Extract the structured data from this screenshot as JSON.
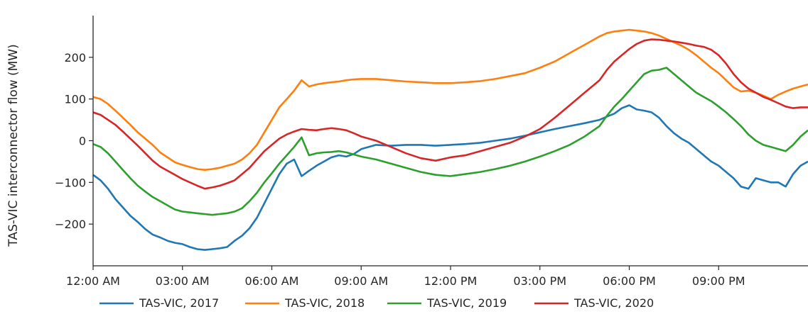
{
  "chart_data": {
    "type": "line",
    "title": "",
    "xlabel": "",
    "ylabel": "TAS-VIC interconnector flow (MW)",
    "x_tick_labels": [
      "12:00 AM",
      "03:00 AM",
      "06:00 AM",
      "09:00 AM",
      "12:00 PM",
      "03:00 PM",
      "06:00 PM",
      "09:00 PM"
    ],
    "x_tick_hours": [
      0,
      3,
      6,
      9,
      12,
      15,
      18,
      21
    ],
    "y_ticks": [
      -200,
      -100,
      0,
      100,
      200
    ],
    "y_tick_labels": [
      "−200",
      "−100",
      "0",
      "100",
      "200"
    ],
    "xlim": [
      0,
      24
    ],
    "ylim": [
      -300,
      300
    ],
    "grid": false,
    "legend_position": "bottom",
    "series": [
      {
        "name": "TAS-VIC, 2017",
        "color": "#1f77b4",
        "x": [
          0,
          0.25,
          0.5,
          0.75,
          1,
          1.25,
          1.5,
          1.75,
          2,
          2.25,
          2.5,
          2.75,
          3,
          3.25,
          3.5,
          3.75,
          4,
          4.25,
          4.5,
          4.75,
          5,
          5.25,
          5.5,
          5.75,
          6,
          6.25,
          6.5,
          6.75,
          7,
          7.25,
          7.5,
          7.75,
          8,
          8.25,
          8.5,
          8.75,
          9,
          9.5,
          10,
          10.5,
          11,
          11.5,
          12,
          12.5,
          13,
          13.5,
          14,
          14.5,
          15,
          15.5,
          16,
          16.5,
          17,
          17.25,
          17.5,
          17.75,
          18,
          18.25,
          18.5,
          18.75,
          19,
          19.25,
          19.5,
          19.75,
          20,
          20.25,
          20.5,
          20.75,
          21,
          21.25,
          21.5,
          21.75,
          22,
          22.25,
          22.5,
          22.75,
          23,
          23.25,
          23.5,
          23.75,
          24
        ],
        "y": [
          -82,
          -95,
          -115,
          -140,
          -160,
          -180,
          -195,
          -212,
          -225,
          -232,
          -240,
          -245,
          -248,
          -255,
          -260,
          -262,
          -260,
          -258,
          -255,
          -240,
          -228,
          -210,
          -185,
          -150,
          -115,
          -80,
          -55,
          -45,
          -85,
          -72,
          -60,
          -50,
          -40,
          -35,
          -38,
          -32,
          -20,
          -10,
          -12,
          -10,
          -10,
          -12,
          -10,
          -8,
          -5,
          0,
          5,
          12,
          20,
          28,
          35,
          42,
          50,
          58,
          65,
          78,
          85,
          75,
          72,
          68,
          55,
          35,
          18,
          5,
          -5,
          -20,
          -35,
          -50,
          -60,
          -75,
          -90,
          -110,
          -115,
          -90,
          -95,
          -100,
          -100,
          -110,
          -80,
          -60,
          -50
        ]
      },
      {
        "name": "TAS-VIC, 2018",
        "color": "#ff7f0e",
        "x": [
          0,
          0.25,
          0.5,
          0.75,
          1,
          1.25,
          1.5,
          1.75,
          2,
          2.25,
          2.5,
          2.75,
          3,
          3.25,
          3.5,
          3.75,
          4,
          4.25,
          4.5,
          4.75,
          5,
          5.25,
          5.5,
          5.75,
          6,
          6.25,
          6.5,
          6.75,
          7,
          7.25,
          7.5,
          7.75,
          8,
          8.25,
          8.5,
          8.75,
          9,
          9.5,
          10,
          10.5,
          11,
          11.5,
          12,
          12.5,
          13,
          13.5,
          14,
          14.5,
          15,
          15.5,
          16,
          16.5,
          17,
          17.25,
          17.5,
          17.75,
          18,
          18.25,
          18.5,
          18.75,
          19,
          19.25,
          19.5,
          19.75,
          20,
          20.25,
          20.5,
          20.75,
          21,
          21.25,
          21.5,
          21.75,
          22,
          22.25,
          22.5,
          22.75,
          23,
          23.25,
          23.5,
          23.75,
          24
        ],
        "y": [
          105,
          100,
          88,
          72,
          55,
          38,
          20,
          5,
          -10,
          -28,
          -40,
          -52,
          -58,
          -63,
          -68,
          -70,
          -68,
          -65,
          -60,
          -55,
          -45,
          -30,
          -10,
          20,
          50,
          80,
          100,
          120,
          145,
          130,
          135,
          138,
          140,
          142,
          145,
          147,
          148,
          148,
          145,
          142,
          140,
          138,
          138,
          140,
          143,
          148,
          155,
          162,
          175,
          190,
          210,
          230,
          250,
          258,
          262,
          264,
          266,
          264,
          262,
          258,
          252,
          244,
          236,
          228,
          218,
          205,
          190,
          175,
          162,
          145,
          128,
          118,
          120,
          115,
          108,
          100,
          110,
          118,
          125,
          130,
          135
        ]
      },
      {
        "name": "TAS-VIC, 2019",
        "color": "#2ca02c",
        "x": [
          0,
          0.25,
          0.5,
          0.75,
          1,
          1.25,
          1.5,
          1.75,
          2,
          2.25,
          2.5,
          2.75,
          3,
          3.25,
          3.5,
          3.75,
          4,
          4.25,
          4.5,
          4.75,
          5,
          5.25,
          5.5,
          5.75,
          6,
          6.25,
          6.5,
          6.75,
          7,
          7.25,
          7.5,
          7.75,
          8,
          8.25,
          8.5,
          8.75,
          9,
          9.5,
          10,
          10.5,
          11,
          11.5,
          12,
          12.5,
          13,
          13.5,
          14,
          14.5,
          15,
          15.5,
          16,
          16.5,
          17,
          17.25,
          17.5,
          17.75,
          18,
          18.25,
          18.5,
          18.75,
          19,
          19.25,
          19.5,
          19.75,
          20,
          20.25,
          20.5,
          20.75,
          21,
          21.25,
          21.5,
          21.75,
          22,
          22.25,
          22.5,
          22.75,
          23,
          23.25,
          23.5,
          23.75,
          24
        ],
        "y": [
          -8,
          -15,
          -30,
          -50,
          -70,
          -90,
          -108,
          -122,
          -135,
          -145,
          -155,
          -165,
          -170,
          -172,
          -174,
          -176,
          -178,
          -176,
          -174,
          -170,
          -162,
          -145,
          -125,
          -100,
          -78,
          -55,
          -35,
          -15,
          8,
          -35,
          -30,
          -28,
          -27,
          -25,
          -28,
          -33,
          -38,
          -45,
          -55,
          -65,
          -75,
          -82,
          -85,
          -80,
          -75,
          -68,
          -60,
          -50,
          -38,
          -25,
          -10,
          10,
          35,
          60,
          82,
          100,
          120,
          140,
          160,
          168,
          170,
          175,
          160,
          145,
          130,
          115,
          105,
          95,
          82,
          68,
          52,
          35,
          15,
          0,
          -10,
          -15,
          -20,
          -25,
          -10,
          10,
          25
        ]
      },
      {
        "name": "TAS-VIC, 2020",
        "color": "#d62728",
        "x": [
          0,
          0.25,
          0.5,
          0.75,
          1,
          1.25,
          1.5,
          1.75,
          2,
          2.25,
          2.5,
          2.75,
          3,
          3.25,
          3.5,
          3.75,
          4,
          4.25,
          4.5,
          4.75,
          5,
          5.25,
          5.5,
          5.75,
          6,
          6.25,
          6.5,
          6.75,
          7,
          7.25,
          7.5,
          7.75,
          8,
          8.25,
          8.5,
          8.75,
          9,
          9.5,
          10,
          10.5,
          11,
          11.5,
          12,
          12.5,
          13,
          13.5,
          14,
          14.5,
          15,
          15.5,
          16,
          16.5,
          17,
          17.25,
          17.5,
          17.75,
          18,
          18.25,
          18.5,
          18.75,
          19,
          19.25,
          19.5,
          19.75,
          20,
          20.25,
          20.5,
          20.75,
          21,
          21.25,
          21.5,
          21.75,
          22,
          22.25,
          22.5,
          22.75,
          23,
          23.25,
          23.5,
          23.75,
          24
        ],
        "y": [
          68,
          62,
          50,
          38,
          22,
          5,
          -12,
          -30,
          -48,
          -62,
          -72,
          -82,
          -92,
          -100,
          -108,
          -115,
          -112,
          -108,
          -102,
          -95,
          -80,
          -65,
          -45,
          -25,
          -10,
          5,
          15,
          22,
          28,
          26,
          25,
          28,
          30,
          28,
          25,
          18,
          10,
          0,
          -15,
          -30,
          -42,
          -48,
          -40,
          -35,
          -25,
          -15,
          -5,
          10,
          28,
          55,
          85,
          115,
          145,
          170,
          190,
          205,
          220,
          232,
          240,
          243,
          242,
          240,
          238,
          235,
          232,
          228,
          225,
          218,
          205,
          185,
          160,
          140,
          125,
          115,
          105,
          98,
          90,
          82,
          78,
          80,
          80
        ]
      }
    ]
  }
}
